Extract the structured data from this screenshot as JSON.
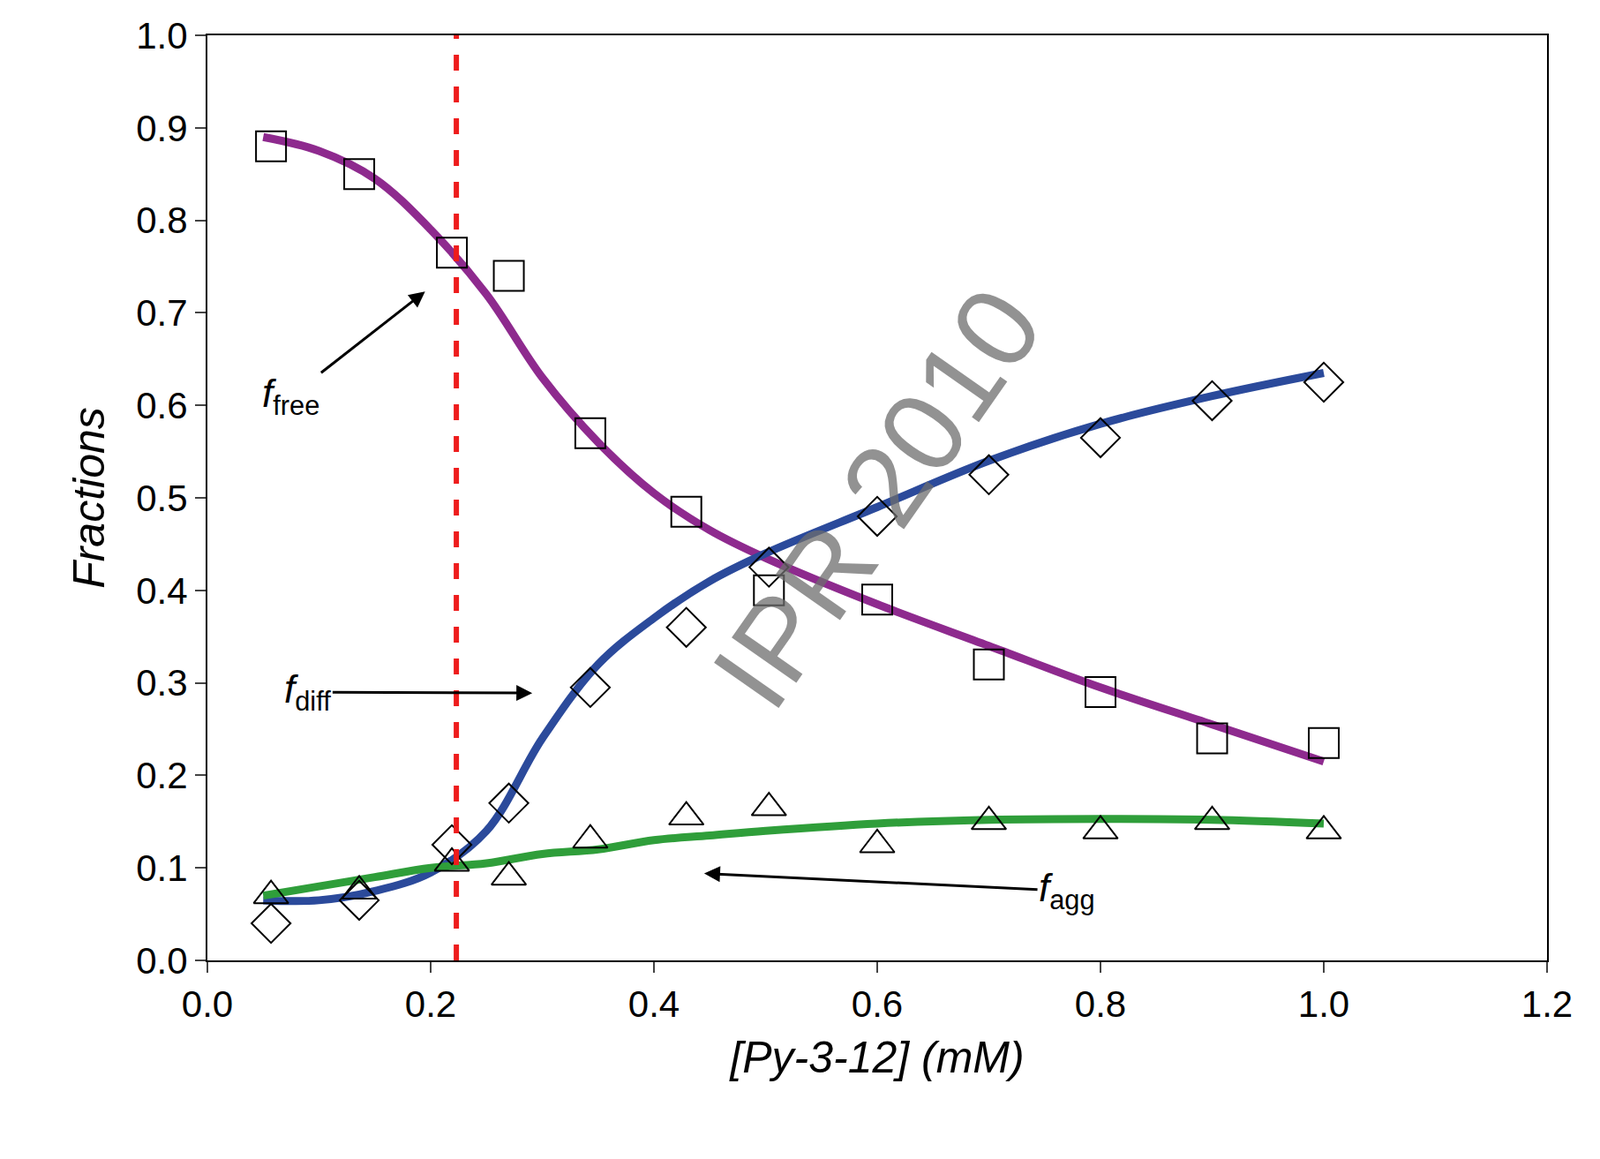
{
  "chart_data": {
    "type": "scatter",
    "x_label": "[Py-3-12] (mM)",
    "y_label": "Fractions",
    "x": [
      0.057,
      0.136,
      0.219,
      0.27,
      0.343,
      0.429,
      0.503,
      0.6,
      0.7,
      0.8,
      0.9,
      1.0
    ],
    "fit_x": [
      0.05,
      0.1,
      0.15,
      0.2,
      0.25,
      0.3,
      0.35,
      0.4,
      0.45,
      0.5,
      0.6,
      0.7,
      0.8,
      0.9,
      1.0
    ],
    "series": [
      {
        "name": "free",
        "color": "#8e2a8e",
        "marker": "square-open",
        "values": [
          0.88,
          0.85,
          0.765,
          0.74,
          0.57,
          0.485,
          0.4,
          0.39,
          0.32,
          0.29,
          0.24,
          0.235
        ],
        "fit": [
          0.89,
          0.875,
          0.845,
          0.79,
          0.72,
          0.63,
          0.56,
          0.505,
          0.465,
          0.435,
          0.385,
          0.34,
          0.295,
          0.255,
          0.215
        ]
      },
      {
        "name": "diff",
        "color": "#2b4a9b",
        "marker": "diamond-open",
        "values": [
          0.04,
          0.065,
          0.125,
          0.17,
          0.295,
          0.36,
          0.425,
          0.48,
          0.525,
          0.565,
          0.605,
          0.625
        ],
        "fit": [
          0.065,
          0.065,
          0.075,
          0.095,
          0.14,
          0.24,
          0.32,
          0.37,
          0.41,
          0.44,
          0.49,
          0.54,
          0.58,
          0.61,
          0.635
        ]
      },
      {
        "name": "agg",
        "color": "#2f9e3a",
        "marker": "triangle-up-open",
        "values": [
          0.07,
          0.075,
          0.105,
          0.09,
          0.13,
          0.155,
          0.165,
          0.125,
          0.15,
          0.14,
          0.15,
          0.14
        ],
        "fit": [
          0.07,
          0.08,
          0.09,
          0.1,
          0.105,
          0.115,
          0.12,
          0.13,
          0.135,
          0.14,
          0.148,
          0.152,
          0.153,
          0.152,
          0.148
        ]
      }
    ],
    "annotations": [
      {
        "text": "f",
        "subscript": "free",
        "x": 0.195,
        "y": 0.723,
        "text_x": 0.075,
        "text_y": 0.61
      },
      {
        "text": "f",
        "subscript": "diff",
        "x": 0.291,
        "y": 0.289,
        "text_x": 0.09,
        "text_y": 0.29
      },
      {
        "text": "f",
        "subscript": "agg",
        "x": 0.445,
        "y": 0.094,
        "text_x": 0.77,
        "text_y": 0.075
      }
    ],
    "vline": {
      "x": 0.223,
      "color": "#ee1c1c",
      "line_style": "dash"
    },
    "watermark": "IPR 2010",
    "xlim": [
      0,
      1.2
    ],
    "ylim": [
      0,
      1.0
    ],
    "xticks": [
      {
        "value": 0,
        "label": "0.0"
      },
      0.2,
      0.4,
      0.6,
      0.8,
      {
        "value": 1.0,
        "label": "1.0"
      },
      1.2
    ],
    "yticks": [
      {
        "value": 0,
        "label": "0.0"
      },
      0.1,
      0.2,
      0.3,
      0.4,
      0.5,
      0.6,
      0.7,
      0.8,
      0.9,
      {
        "value": 1.0,
        "label": "1.0"
      }
    ],
    "grid": false
  }
}
